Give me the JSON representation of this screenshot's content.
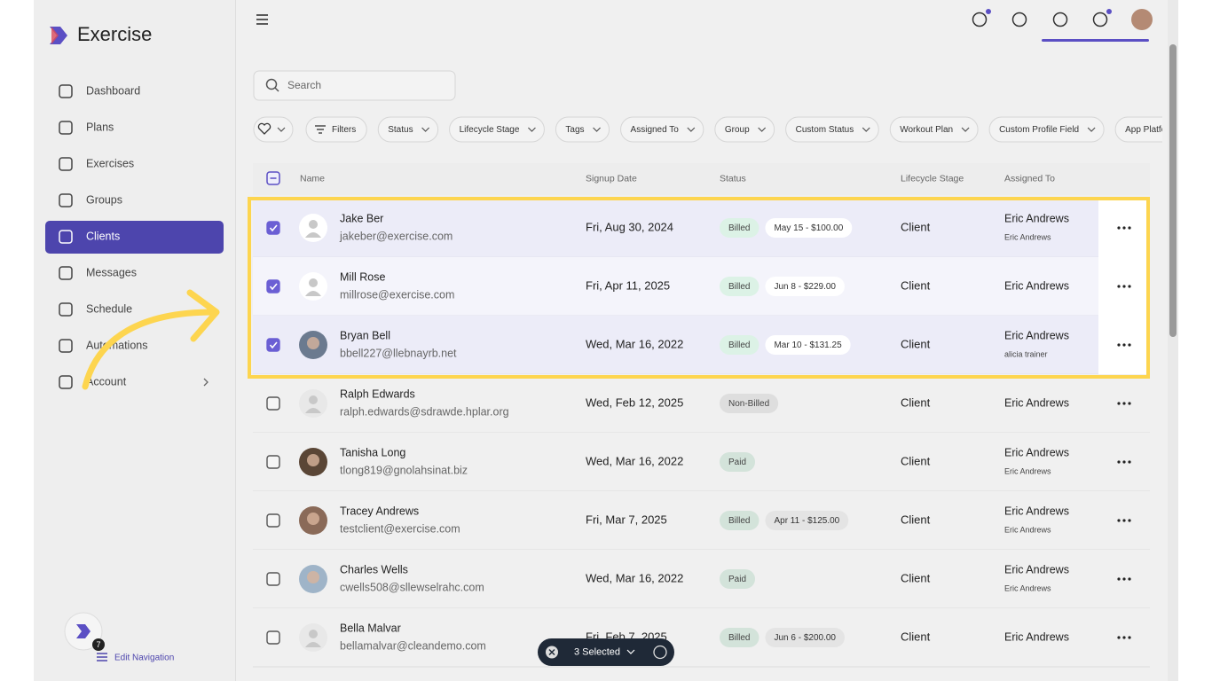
{
  "brand": "Exercise",
  "nav": [
    {
      "label": "Dashboard"
    },
    {
      "label": "Plans"
    },
    {
      "label": "Exercises"
    },
    {
      "label": "Groups"
    },
    {
      "label": "Clients",
      "active": true
    },
    {
      "label": "Messages"
    },
    {
      "label": "Schedule"
    },
    {
      "label": "Automations"
    },
    {
      "label": "Account"
    }
  ],
  "edit_nav": {
    "label": "Edit Navigation",
    "badge": "7"
  },
  "search": {
    "placeholder": "Search"
  },
  "filters": [
    "Filters",
    "Status",
    "Lifecycle Stage",
    "Tags",
    "Assigned To",
    "Group",
    "Custom Status",
    "Workout Plan",
    "Custom Profile Field",
    "App Platform"
  ],
  "table": {
    "headers": [
      "Name",
      "Signup Date",
      "Status",
      "Lifecycle Stage",
      "Assigned To"
    ],
    "rows": [
      {
        "name": "Jake Ber",
        "email": "jakeber@exercise.com",
        "date": "Fri, Aug 30, 2024",
        "status": "Billed",
        "billing": "May 15 - $100.00",
        "stage": "Client",
        "assigned": "Eric Andrews",
        "sub": "Eric Andrews",
        "selected": true,
        "photo": false
      },
      {
        "name": "Mill Rose",
        "email": "millrose@exercise.com",
        "date": "Fri, Apr 11, 2025",
        "status": "Billed",
        "billing": "Jun 8 - $229.00",
        "stage": "Client",
        "assigned": "Eric Andrews",
        "selected": true,
        "photo": false
      },
      {
        "name": "Bryan Bell",
        "email": "bbell227@llebnayrb.net",
        "date": "Wed, Mar 16, 2022",
        "status": "Billed",
        "billing": "Mar 10 - $131.25",
        "stage": "Client",
        "assigned": "Eric Andrews",
        "sub": "alicia trainer",
        "selected": true,
        "photo": true
      },
      {
        "name": "Ralph Edwards",
        "email": "ralph.edwards@sdrawde.hplar.org",
        "date": "Wed, Feb 12, 2025",
        "status": "Non-Billed",
        "stage": "Client",
        "assigned": "Eric Andrews",
        "selected": false,
        "photo": false
      },
      {
        "name": "Tanisha Long",
        "email": "tlong819@gnolahsinat.biz",
        "date": "Wed, Mar 16, 2022",
        "status": "Paid",
        "stage": "Client",
        "assigned": "Eric Andrews",
        "sub": "Eric Andrews",
        "selected": false,
        "photo": true
      },
      {
        "name": "Tracey Andrews",
        "email": "testclient@exercise.com",
        "date": "Fri, Mar 7, 2025",
        "status": "Billed",
        "billing": "Apr 11 - $125.00",
        "stage": "Client",
        "assigned": "Eric Andrews",
        "sub": "Eric Andrews",
        "selected": false,
        "photo": true
      },
      {
        "name": "Charles Wells",
        "email": "cwells508@sllewselrahc.com",
        "date": "Wed, Mar 16, 2022",
        "status": "Paid",
        "stage": "Client",
        "assigned": "Eric Andrews",
        "sub": "Eric Andrews",
        "selected": false,
        "photo": true
      },
      {
        "name": "Bella Malvar",
        "email": "bellamalvar@cleandemo.com",
        "date": "Fri, Feb 7, 2025",
        "status": "Billed",
        "billing": "Jun 6 - $200.00",
        "stage": "Client",
        "assigned": "Eric Andrews",
        "selected": false,
        "photo": false
      }
    ]
  },
  "selection_bar": {
    "label": "3 Selected"
  }
}
